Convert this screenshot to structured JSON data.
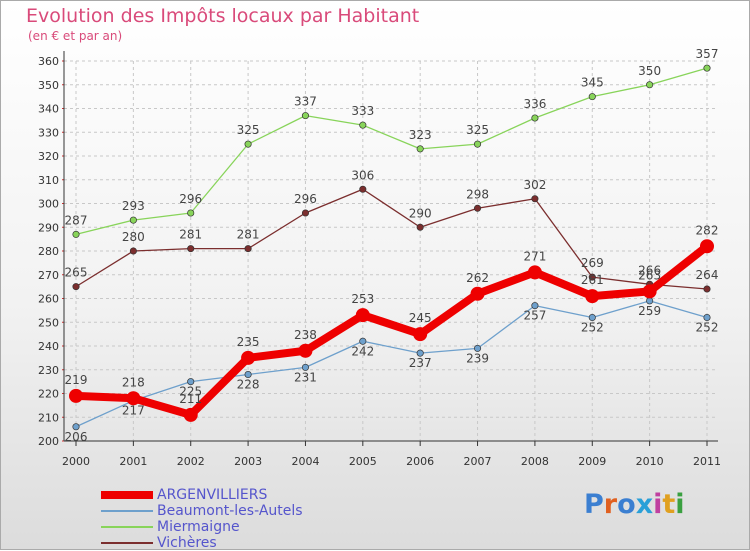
{
  "header": {
    "title": "Evolution des Impôts locaux par Habitant",
    "subtitle": "(en € et par an)"
  },
  "chart_data": {
    "type": "line",
    "title": "Evolution des Impôts locaux par Habitant",
    "subtitle": "(en € et par an)",
    "xlabel": "",
    "ylabel": "",
    "ylim": [
      200,
      360
    ],
    "ystep": 10,
    "categories": [
      "2000",
      "2001",
      "2002",
      "2003",
      "2004",
      "2005",
      "2006",
      "2007",
      "2008",
      "2009",
      "2010",
      "2011"
    ],
    "series": [
      {
        "name": "Miermaigne",
        "color": "#88d45a",
        "values": [
          287,
          293,
          296,
          325,
          337,
          333,
          323,
          325,
          336,
          345,
          350,
          357
        ],
        "labels": [
          "287",
          "293",
          "296",
          "325",
          "337",
          "333",
          "323",
          "325",
          "336",
          "345",
          "350",
          "357"
        ]
      },
      {
        "name": "Vichères",
        "color": "#7b2e2e",
        "values": [
          265,
          280,
          281,
          281,
          296,
          306,
          290,
          298,
          302,
          269,
          266,
          264
        ],
        "labels": [
          "265",
          "280",
          "281",
          "281",
          "296",
          "306",
          "290",
          "298",
          "302",
          "269",
          "266",
          "264"
        ]
      },
      {
        "name": "Beaumont-les-Autels",
        "color": "#6ea0cc",
        "values": [
          206,
          217,
          225,
          228,
          231,
          242,
          237,
          239,
          257,
          252,
          259,
          252
        ],
        "labels": [
          "206",
          "217",
          "225",
          "228",
          "231",
          "242",
          "237",
          "239",
          "257",
          "252",
          "259",
          "252"
        ]
      },
      {
        "name": "ARGENVILLIERS",
        "color": "#ee0000",
        "values": [
          219,
          218,
          211,
          235,
          238,
          253,
          245,
          262,
          271,
          261,
          263,
          282
        ],
        "labels": [
          "219",
          "218",
          "211",
          "235",
          "238",
          "253",
          "245",
          "262",
          "271",
          "261",
          "263",
          "282"
        ]
      }
    ],
    "grid": true,
    "legend_position": "bottom-left"
  },
  "legend": {
    "items": [
      {
        "label": "ARGENVILLIERS",
        "color": "#ee0000"
      },
      {
        "label": "Beaumont-les-Autels",
        "color": "#6ea0cc"
      },
      {
        "label": "Miermaigne",
        "color": "#88d45a"
      },
      {
        "label": "Vichères",
        "color": "#7b2e2e"
      }
    ]
  },
  "logo": {
    "text": "Proxiti",
    "colors": [
      "#3b7fd1",
      "#e06020",
      "#3b7fd1",
      "#2aa0d8",
      "#c040a0",
      "#e0a020",
      "#3aa040"
    ]
  }
}
